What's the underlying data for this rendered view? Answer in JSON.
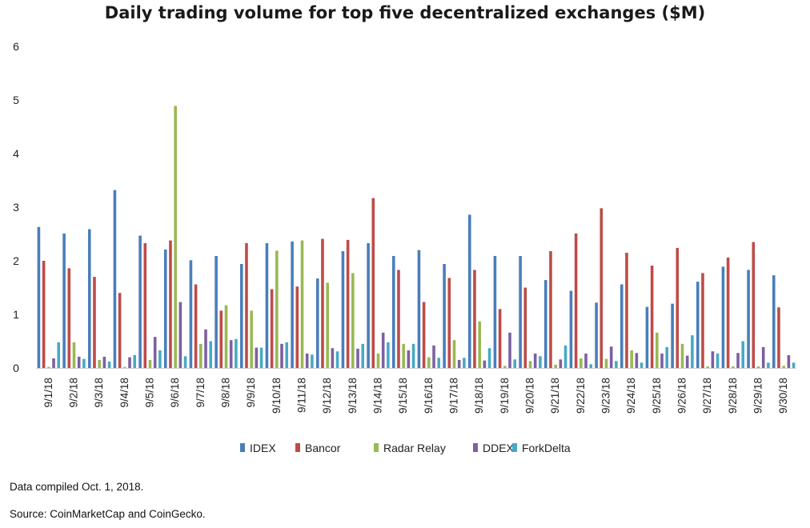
{
  "chart_data": {
    "type": "bar",
    "title": "Daily trading volume for top five decentralized exchanges ($M)",
    "xlabel": "",
    "ylabel": "",
    "ylim": [
      0,
      6
    ],
    "yticks": [
      "0",
      "1",
      "2",
      "3",
      "4",
      "5",
      "6"
    ],
    "grid": false,
    "legend_position": "bottom",
    "categories": [
      "9/1/18",
      "9/2/18",
      "9/3/18",
      "9/4/18",
      "9/5/18",
      "9/6/18",
      "9/7/18",
      "9/8/18",
      "9/9/18",
      "9/10/18",
      "9/11/18",
      "9/12/18",
      "9/13/18",
      "9/14/18",
      "9/15/18",
      "9/16/18",
      "9/17/18",
      "9/18/18",
      "9/19/18",
      "9/20/18",
      "9/21/18",
      "9/22/18",
      "9/23/18",
      "9/24/18",
      "9/25/18",
      "9/26/18",
      "9/27/18",
      "9/28/18",
      "9/29/18",
      "9/30/18"
    ],
    "series": [
      {
        "name": "IDEX",
        "color": "#4a7ebb",
        "values": [
          2.63,
          2.51,
          2.59,
          3.32,
          2.47,
          2.21,
          2.01,
          2.09,
          1.94,
          2.33,
          2.36,
          1.67,
          2.18,
          2.33,
          2.09,
          2.2,
          1.94,
          2.86,
          2.09,
          2.09,
          1.64,
          1.44,
          1.22,
          1.56,
          1.14,
          1.2,
          1.61,
          1.89,
          1.83,
          1.73
        ]
      },
      {
        "name": "Bancor",
        "color": "#be4b48",
        "values": [
          2.0,
          1.86,
          1.7,
          1.4,
          2.33,
          2.38,
          1.56,
          1.07,
          2.33,
          1.47,
          1.52,
          2.41,
          2.39,
          3.17,
          1.83,
          1.23,
          1.68,
          1.83,
          1.1,
          1.5,
          2.18,
          2.51,
          2.98,
          2.15,
          1.91,
          2.24,
          1.77,
          2.06,
          2.35,
          1.13
        ]
      },
      {
        "name": "Radar Relay",
        "color": "#98b954",
        "values": [
          0.02,
          0.48,
          0.15,
          0.02,
          0.15,
          4.89,
          0.45,
          1.17,
          1.07,
          2.19,
          2.38,
          1.59,
          1.77,
          0.27,
          0.45,
          0.2,
          0.52,
          0.87,
          0.04,
          0.13,
          0.06,
          0.18,
          0.17,
          0.33,
          0.66,
          0.45,
          0.03,
          0.03,
          0.03,
          0.04
        ]
      },
      {
        "name": "DDEX",
        "color": "#7d60a0",
        "values": [
          0.18,
          0.21,
          0.21,
          0.2,
          0.58,
          1.23,
          0.72,
          0.52,
          0.38,
          0.45,
          0.27,
          0.37,
          0.36,
          0.66,
          0.33,
          0.42,
          0.15,
          0.14,
          0.66,
          0.27,
          0.16,
          0.27,
          0.4,
          0.28,
          0.27,
          0.23,
          0.31,
          0.28,
          0.39,
          0.24
        ]
      },
      {
        "name": "ForkDelta",
        "color": "#46aac5",
        "values": [
          0.48,
          0.17,
          0.12,
          0.24,
          0.33,
          0.22,
          0.5,
          0.54,
          0.38,
          0.48,
          0.25,
          0.31,
          0.45,
          0.48,
          0.45,
          0.19,
          0.19,
          0.37,
          0.16,
          0.22,
          0.42,
          0.07,
          0.13,
          0.1,
          0.39,
          0.61,
          0.27,
          0.5,
          0.1,
          0.1
        ]
      }
    ]
  },
  "footer": {
    "compiled": "Data compiled Oct. 1, 2018.",
    "source": "Source: CoinMarketCap and CoinGecko."
  }
}
